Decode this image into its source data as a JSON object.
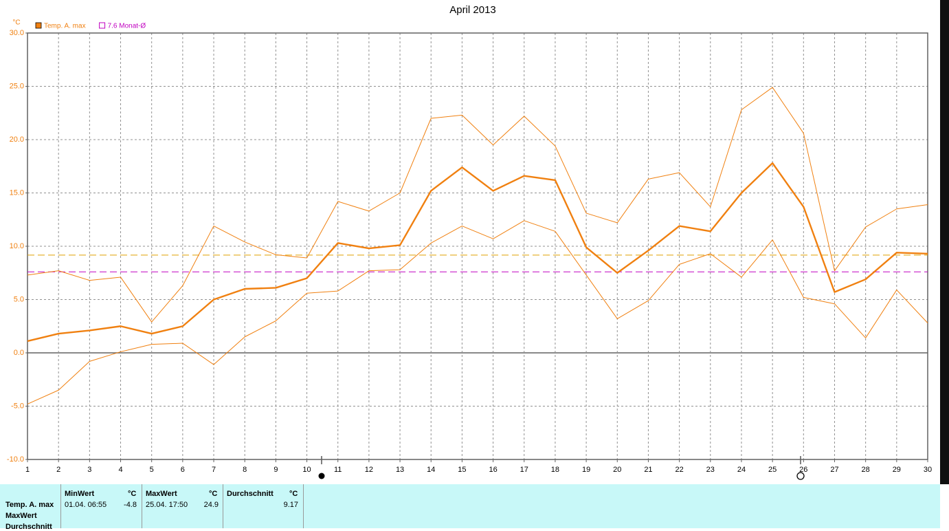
{
  "chart_data": {
    "type": "line",
    "title": "April 2013",
    "y_unit": "°C",
    "categories": [
      "1",
      "2",
      "3",
      "4",
      "5",
      "6",
      "7",
      "8",
      "9",
      "10",
      "11",
      "12",
      "13",
      "14",
      "15",
      "16",
      "17",
      "18",
      "19",
      "20",
      "21",
      "22",
      "23",
      "24",
      "25",
      "26",
      "27",
      "28",
      "29",
      "30"
    ],
    "series": [
      {
        "name": "Temp. A. max",
        "color": "#f08010",
        "width": 2.4,
        "values": [
          1.1,
          1.8,
          2.1,
          2.5,
          1.8,
          2.5,
          5.0,
          6.0,
          6.1,
          7.0,
          10.3,
          9.8,
          10.1,
          15.2,
          17.4,
          15.2,
          16.6,
          16.2,
          9.9,
          7.5,
          9.6,
          11.9,
          11.4,
          15.0,
          17.8,
          13.7,
          5.7,
          6.9,
          9.4,
          9.3
        ]
      },
      {
        "color": "#f08010",
        "width": 1,
        "values": [
          7.3,
          7.7,
          6.8,
          7.1,
          2.9,
          6.3,
          11.9,
          10.4,
          9.2,
          8.9,
          14.2,
          13.3,
          15.0,
          22.0,
          22.3,
          19.5,
          22.2,
          19.4,
          13.1,
          12.2,
          16.3,
          16.9,
          13.7,
          22.8,
          24.9,
          20.6,
          7.7,
          11.8,
          13.5,
          13.9
        ]
      },
      {
        "color": "#f08010",
        "width": 1,
        "values": [
          -4.8,
          -3.5,
          -0.8,
          0.1,
          0.8,
          0.9,
          -1.1,
          1.5,
          3.0,
          5.6,
          5.8,
          7.7,
          7.8,
          10.3,
          11.9,
          10.7,
          12.4,
          11.4,
          7.3,
          3.2,
          4.9,
          8.3,
          9.3,
          7.1,
          10.6,
          5.2,
          4.6,
          1.4,
          5.9,
          2.8
        ]
      }
    ],
    "reference_lines": [
      {
        "name": "7.6 Monat-Ø",
        "value": 7.6,
        "color": "#c000c0"
      },
      {
        "value": 9.17,
        "color": "#e0a000"
      }
    ],
    "ylim": [
      -10,
      30
    ],
    "yticks": [
      {
        "value": -10,
        "label": "-10.0"
      },
      {
        "value": -5,
        "label": "-5.0"
      },
      {
        "value": 0,
        "label": "0.0"
      },
      {
        "value": 5,
        "label": "5.0"
      },
      {
        "value": 10,
        "label": "10.0"
      },
      {
        "value": 15,
        "label": "15.0"
      },
      {
        "value": 20,
        "label": "20.0"
      },
      {
        "value": 25,
        "label": "25.0"
      },
      {
        "value": 30,
        "label": "30.0"
      }
    ],
    "grid": true
  },
  "stats_table": {
    "row_labels": [
      "Temp. A. max",
      "MaxWert",
      "Durchschnitt"
    ],
    "columns": [
      {
        "header": "MinWert",
        "unit": "°C",
        "time": "01.04. 06:55",
        "value": "-4.8"
      },
      {
        "header": "MaxWert",
        "unit": "°C",
        "time": "25.04. 17:50",
        "value": "24.9"
      },
      {
        "header": "Durchschnitt",
        "unit": "°C",
        "value": "9.17"
      }
    ]
  }
}
